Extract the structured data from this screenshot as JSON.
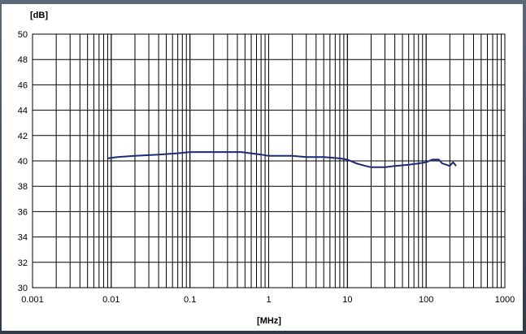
{
  "chart_data": {
    "type": "line",
    "title": "",
    "xlabel": "[MHz]",
    "ylabel": "[dB]",
    "xscale": "log",
    "xlim": [
      0.001,
      1000
    ],
    "ylim": [
      30,
      50
    ],
    "grid": true,
    "x_ticks": [
      "0.001",
      "0.01",
      "0.1",
      "1",
      "10",
      "100",
      "1000"
    ],
    "y_ticks": [
      "30",
      "32",
      "34",
      "36",
      "38",
      "40",
      "42",
      "44",
      "46",
      "48",
      "50"
    ],
    "series": [
      {
        "color": "#1c2a78",
        "x": [
          0.009,
          0.012,
          0.02,
          0.04,
          0.07,
          0.1,
          0.2,
          0.45,
          0.8,
          1.0,
          2.0,
          3.0,
          5.0,
          8.0,
          10.0,
          13.0,
          17.0,
          20.0,
          30.0,
          40.0,
          60.0,
          80.0,
          100.0,
          120.0,
          145.0,
          160.0,
          180.0,
          200.0,
          220.0,
          240.0
        ],
        "y": [
          40.2,
          40.3,
          40.4,
          40.5,
          40.6,
          40.7,
          40.7,
          40.7,
          40.5,
          40.4,
          40.4,
          40.3,
          40.3,
          40.2,
          40.1,
          39.8,
          39.6,
          39.5,
          39.5,
          39.6,
          39.7,
          39.8,
          39.9,
          40.1,
          40.1,
          39.8,
          39.7,
          39.6,
          39.9,
          39.6
        ]
      }
    ]
  }
}
